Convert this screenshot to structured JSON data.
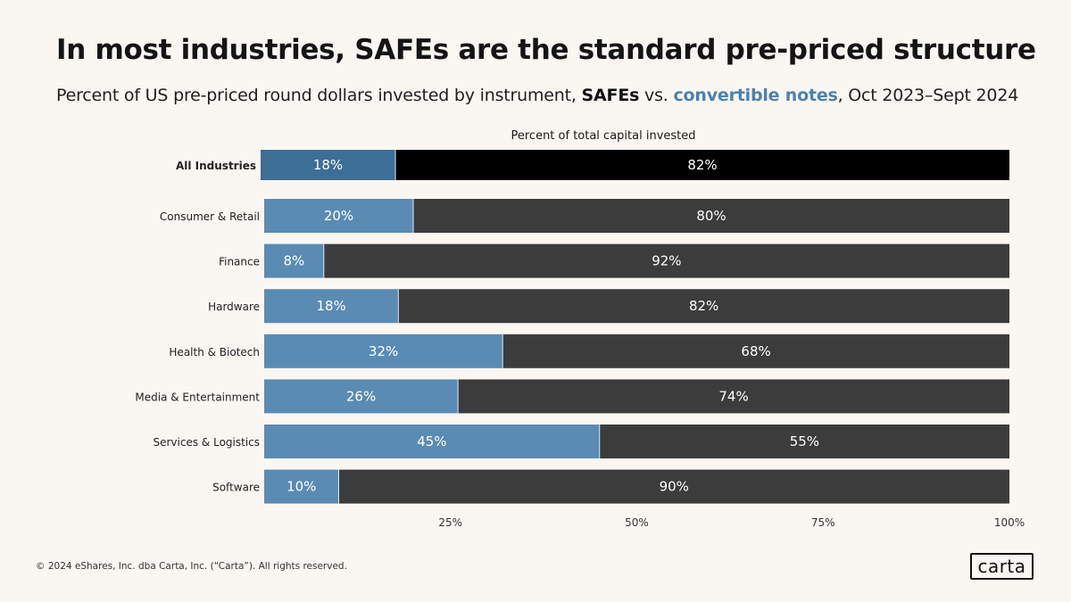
{
  "title": "In most industries, SAFEs are the standard pre-priced structure",
  "subtitle": {
    "prefix": "Percent of US pre-priced round dollars invested by instrument, ",
    "safes": "SAFEs",
    "vs": " vs. ",
    "notes": "convertible notes",
    "suffix": ", Oct 2023–Sept 2024"
  },
  "footer": "© 2024 eShares, Inc. dba Carta, Inc. (“Carta”). All rights reserved.",
  "logo": "carta",
  "colors": {
    "notes_total": "#3d6e98",
    "notes": "#5a8bb3",
    "safes_total": "#000000",
    "safes": "#3c3c3c",
    "axis_text": "#333333"
  },
  "chart_data": {
    "type": "bar",
    "orientation": "horizontal-stacked",
    "title": "Percent of total capital invested",
    "categories": [
      "All Industries",
      "Consumer & Retail",
      "Finance",
      "Hardware",
      "Health & Biotech",
      "Media & Entertainment",
      "Services & Logistics",
      "Software"
    ],
    "series": [
      {
        "name": "convertible notes",
        "values": [
          18,
          20,
          8,
          18,
          32,
          26,
          45,
          10
        ]
      },
      {
        "name": "SAFEs",
        "values": [
          82,
          80,
          92,
          82,
          68,
          74,
          55,
          90
        ]
      }
    ],
    "x_ticks": [
      25,
      50,
      75,
      100
    ],
    "x_tick_labels": [
      "25%",
      "50%",
      "75%",
      "100%"
    ],
    "xlim": [
      0,
      100
    ],
    "highlight_category": "All Industries"
  }
}
